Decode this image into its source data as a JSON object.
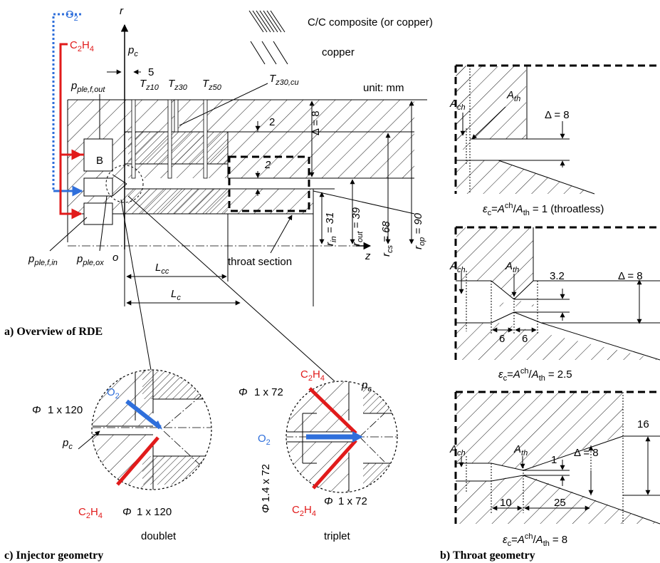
{
  "legend": {
    "cc_composite": "C/C composite (or copper)",
    "copper": "copper"
  },
  "overview": {
    "caption": "a) Overview of RDE",
    "axis_r": "r",
    "axis_z": "z",
    "origin": "o",
    "unit": "unit: mm",
    "o2_label": "O",
    "o2_sub": "2",
    "c2h4_label": "C",
    "c2h4_sub1": "2",
    "c2h4_mid": "H",
    "c2h4_sub2": "4",
    "pc": "p",
    "pc_sub": "c",
    "dim_5": "5",
    "tz10": "T",
    "tz10_sub": "z10",
    "tz30": "T",
    "tz30_sub": "z30",
    "tz50": "T",
    "tz50_sub": "z50",
    "tz30cu": "T",
    "tz30cu_sub": "z30,cu",
    "pple_f_out": "p",
    "pple_f_out_sub": "ple,f,out",
    "pple_f_in": "p",
    "pple_f_in_sub": "ple,f,in",
    "pple_ox": "p",
    "pple_ox_sub": "ple,ox",
    "B": "B",
    "dim_2a": "2",
    "dim_2b": "2",
    "delta8": "Δ = 8",
    "r_in": "r",
    "r_in_sub": "in",
    "r_in_val": " = 31",
    "r_out": "r",
    "r_out_sub": "out",
    "r_out_val": " = 39",
    "r_cs": "r",
    "r_cs_sub": "cs",
    "r_cs_val": " = 68",
    "r_op": "r",
    "r_op_sub": "op",
    "r_op_val": " = 90",
    "Lcc": "L",
    "Lcc_sub": "cc",
    "Lc": "L",
    "Lc_sub": "c",
    "throat_section": "throat section"
  },
  "throat": {
    "caption": "b) Throat geometry",
    "a_ch": "A",
    "a_ch_sub": "ch",
    "a_th": "A",
    "a_th_sub": "th",
    "delta8": "Δ = 8",
    "eps1": "= 1 (throatless)",
    "eps2": "= 2.5",
    "eps3": "= 8",
    "eps_sym": "ε",
    "eps_sub": "c",
    "dim_3_2": "3.2",
    "dim_6a": "6",
    "dim_6b": "6",
    "dim_1": "1",
    "dim_16": "16",
    "dim_10": "10",
    "dim_25": "25"
  },
  "injector": {
    "caption": "c) Injector geometry",
    "doublet": "doublet",
    "triplet": "triplet",
    "phi_120a": "1 x 120",
    "phi_120b": "1 x 120",
    "phi_72a": "1 x 72",
    "phi_72b": "1 x 72",
    "phi_14": "1.4 x 72",
    "phi": "Φ",
    "pc": "p",
    "pc_sub": "c"
  },
  "colors": {
    "red": "#e11b1b",
    "blue": "#2f6fdb",
    "line": "#000000"
  }
}
